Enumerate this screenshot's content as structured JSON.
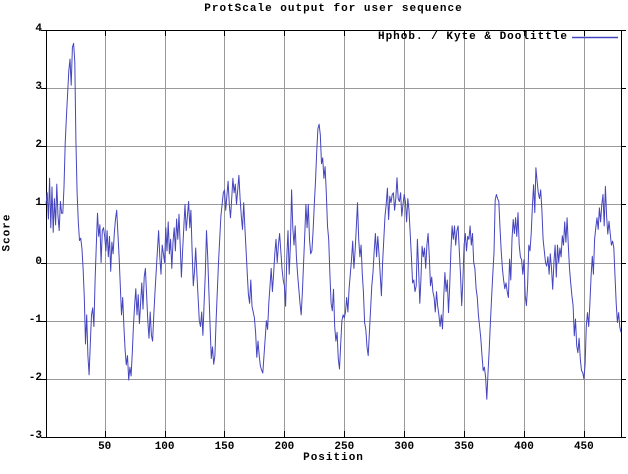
{
  "title": "ProtScale output for user sequence",
  "legend": {
    "label": "Hphob. / Kyte & Doolittle"
  },
  "axes": {
    "x_label": "Position",
    "y_label": "Score",
    "x_ticks": [
      50,
      100,
      150,
      200,
      250,
      300,
      350,
      400,
      450
    ],
    "y_ticks": [
      4,
      3,
      2,
      1,
      0,
      -1,
      -2,
      -3
    ]
  },
  "colors": {
    "line": "#4545bf",
    "grid": "#999999",
    "axis": "#000000",
    "background": "#ffffff",
    "text": "#000000"
  },
  "chart_data": {
    "type": "line",
    "title": "ProtScale output for user sequence",
    "xlabel": "Position",
    "ylabel": "Score",
    "xlim": [
      1,
      481
    ],
    "ylim": [
      -3,
      4
    ],
    "grid": true,
    "legend_position": "top-right",
    "series": [
      {
        "name": "Hphob. / Kyte & Doolittle",
        "x_start": 1,
        "x_step": 1,
        "values": [
          1.0,
          1.2,
          0.75,
          1.45,
          0.6,
          1.3,
          0.52,
          1.1,
          0.65,
          1.35,
          0.8,
          0.55,
          1.05,
          0.85,
          0.85,
          1.3,
          2.05,
          2.5,
          2.9,
          3.3,
          3.5,
          3.05,
          3.7,
          3.77,
          3.45,
          2.1,
          1.2,
          0.7,
          0.38,
          0.42,
          0.25,
          -0.1,
          -0.6,
          -1.4,
          -0.9,
          -1.6,
          -1.93,
          -1.4,
          -0.9,
          -0.78,
          -1.1,
          -0.3,
          0.3,
          0.85,
          0.45,
          0.65,
          0.0,
          0.55,
          0.6,
          0.45,
          0.2,
          0.55,
          0.1,
          0.45,
          -0.15,
          0.35,
          0.15,
          0.5,
          0.75,
          0.9,
          0.5,
          0.1,
          -0.4,
          -0.9,
          -0.6,
          -1.1,
          -1.5,
          -1.76,
          -1.6,
          -2.02,
          -1.8,
          -1.95,
          -1.55,
          -1.1,
          -0.75,
          -0.45,
          -0.9,
          -0.55,
          -1.05,
          -0.7,
          -0.35,
          -0.8,
          -0.25,
          -0.1,
          -0.55,
          -1.0,
          -1.3,
          -0.85,
          -1.25,
          -1.35,
          -0.9,
          -0.5,
          -0.15,
          0.2,
          0.55,
          0.1,
          -0.2,
          0.3,
          0.15,
          0.0,
          0.6,
          0.2,
          0.7,
          0.15,
          0.4,
          -0.1,
          0.35,
          0.6,
          0.2,
          0.75,
          0.4,
          0.83,
          0.3,
          -0.25,
          0.2,
          0.6,
          1.0,
          0.55,
          0.8,
          1.05,
          0.6,
          0.9,
          0.2,
          -0.4,
          -0.15,
          0.25,
          -0.2,
          -0.6,
          -1.0,
          -1.1,
          -0.85,
          -1.25,
          -0.7,
          -0.2,
          0.55,
          0.1,
          -0.5,
          -1.1,
          -1.65,
          -1.45,
          -1.75,
          -1.6,
          -1.0,
          -0.5,
          0.0,
          0.4,
          0.8,
          1.0,
          1.2,
          1.25,
          0.9,
          1.15,
          1.4,
          1.0,
          0.77,
          1.1,
          1.45,
          1.2,
          1.35,
          1.0,
          1.25,
          1.5,
          1.1,
          0.8,
          0.57,
          1.03,
          0.6,
          0.2,
          -0.2,
          -0.55,
          -0.7,
          -0.3,
          -0.75,
          -0.85,
          -0.95,
          -1.2,
          -1.63,
          -1.35,
          -1.6,
          -1.78,
          -1.85,
          -1.9,
          -1.6,
          -1.3,
          -1.0,
          -1.15,
          -0.7,
          -0.4,
          -0.1,
          -0.5,
          -0.2,
          0.15,
          0.4,
          0.0,
          0.3,
          0.5,
          0.2,
          -0.1,
          -0.3,
          -0.4,
          -0.75,
          0.1,
          0.55,
          -0.2,
          0.3,
          1.25,
          0.6,
          0.3,
          0.63,
          0.1,
          -0.2,
          -0.45,
          -0.7,
          -0.9,
          -0.5,
          0.0,
          0.5,
          1.0,
          0.6,
          1.0,
          0.4,
          0.15,
          0.2,
          0.55,
          1.0,
          1.4,
          1.9,
          2.3,
          2.38,
          2.2,
          1.7,
          1.8,
          1.45,
          1.65,
          1.2,
          0.63,
          0.4,
          -0.2,
          -0.7,
          -0.83,
          -0.46,
          -1.1,
          -1.35,
          -1.2,
          -1.66,
          -1.83,
          -1.4,
          -1.0,
          -0.9,
          -0.95,
          -0.85,
          -0.6,
          -0.85,
          -0.45,
          -0.2,
          0.05,
          0.37,
          -0.1,
          0.2,
          0.6,
          1.03,
          0.4,
          0.1,
          0.3,
          -0.2,
          -0.5,
          -1.03,
          -1.15,
          -1.45,
          -1.6,
          -1.2,
          -0.8,
          -0.4,
          -0.17,
          0.2,
          0.5,
          0.1,
          0.45,
          0.15,
          -0.2,
          -0.57,
          0.0,
          0.4,
          0.8,
          1.0,
          1.28,
          0.74,
          1.14,
          1.03,
          1.17,
          1.2,
          0.9,
          1.1,
          1.46,
          1.1,
          1.05,
          1.2,
          0.8,
          1.0,
          1.17,
          1.05,
          0.7,
          1.1,
          0.9,
          0.5,
          0.1,
          -0.35,
          -0.3,
          -0.5,
          -0.4,
          0.4,
          -0.1,
          -0.7,
          -0.3,
          0.28,
          0.1,
          0.25,
          -0.1,
          0.3,
          0.5,
          0.1,
          -0.4,
          -0.25,
          -0.5,
          -0.6,
          -0.85,
          -0.5,
          -0.75,
          -0.9,
          -1.1,
          -0.9,
          -1.14,
          -0.6,
          -0.17,
          -0.5,
          -0.3,
          -0.86,
          -0.4,
          0.2,
          0.63,
          0.4,
          0.63,
          0.3,
          0.55,
          0.63,
          0.2,
          -0.2,
          -0.74,
          -0.3,
          0.3,
          0.5,
          0.2,
          0.45,
          0.4,
          0.63,
          0.3,
          0.5,
          0.0,
          -0.1,
          -0.45,
          -0.6,
          -0.9,
          -1.1,
          -1.3,
          -1.6,
          -1.86,
          -1.8,
          -1.97,
          -2.35,
          -1.9,
          -1.5,
          -1.03,
          -0.6,
          -0.2,
          0.17,
          1.08,
          1.17,
          1.1,
          1.05,
          0.6,
          0.2,
          -0.1,
          -0.3,
          -0.45,
          -0.35,
          -0.5,
          -0.6,
          0.06,
          -0.3,
          0.4,
          0.74,
          0.5,
          0.77,
          0.45,
          0.86,
          0.3,
          0.1,
          0.05,
          -0.2,
          0.05,
          -0.57,
          -0.74,
          -0.4,
          0.3,
          0.2,
          0.5,
          0.97,
          1.34,
          0.86,
          1.63,
          1.4,
          1.2,
          1.1,
          1.25,
          0.9,
          0.4,
          0.2,
          0.0,
          -0.06,
          0.1,
          -0.2,
          0.15,
          -0.1,
          -0.46,
          0.0,
          0.3,
          -0.25,
          0.3,
          0.0,
          0.25,
          0.1,
          0.46,
          0.3,
          0.7,
          0.35,
          0.77,
          0.3,
          -0.1,
          -0.35,
          -0.57,
          -0.74,
          -1.26,
          -0.97,
          -1.43,
          -1.55,
          -1.3,
          -1.66,
          -1.86,
          -1.89,
          -2.0,
          -1.75,
          -1.09,
          -0.86,
          -1.1,
          -0.7,
          -0.23,
          0.11,
          -0.2,
          0.4,
          0.6,
          0.77,
          0.57,
          0.94,
          0.7,
          1.0,
          1.17,
          0.63,
          1.31,
          0.8,
          0.49,
          0.71,
          0.5,
          0.3,
          0.37,
          0.26,
          -0.23,
          -0.7,
          -1.03,
          -0.86,
          -1.11,
          -1.2
        ]
      }
    ]
  }
}
